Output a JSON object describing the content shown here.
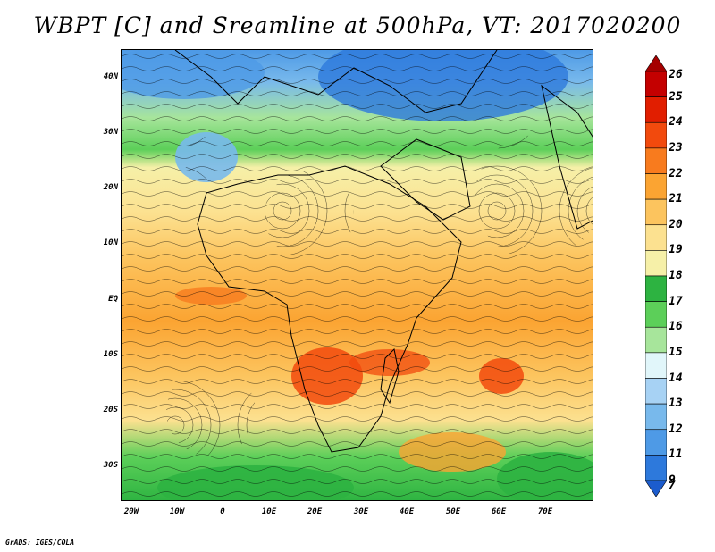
{
  "title": "WBPT [C] and Sreamline at 500hPa, VT: 2017020200",
  "credit": "GrADS: IGES/COLA",
  "map": {
    "latitude_labels": [
      "40N",
      "30N",
      "20N",
      "10N",
      "EQ",
      "10S",
      "20S",
      "30S"
    ],
    "longitude_labels": [
      "20W",
      "10W",
      "0",
      "10E",
      "20E",
      "30E",
      "40E",
      "50E",
      "60E",
      "70E"
    ],
    "lat_range": [
      -37,
      45
    ],
    "lon_range": [
      -22,
      80
    ],
    "features": [
      "wet-bulb potential temperature shading",
      "500hPa streamlines",
      "coastlines"
    ]
  },
  "colorbar": {
    "labels": [
      "26",
      "25",
      "24",
      "23",
      "22",
      "21",
      "20",
      "19",
      "18",
      "17",
      "16",
      "15",
      "14",
      "13",
      "12",
      "11",
      "9",
      "7"
    ],
    "colors": [
      "#a50000",
      "#c40000",
      "#e11e00",
      "#f24a0d",
      "#f87b1e",
      "#fba432",
      "#fcc45e",
      "#fce190",
      "#f6f0a8",
      "#2db341",
      "#5ccf59",
      "#a7e59b",
      "#e1f6fa",
      "#a7d2f4",
      "#78b9ec",
      "#4e9ae6",
      "#2d79dc",
      "#1c5ccd"
    ]
  }
}
